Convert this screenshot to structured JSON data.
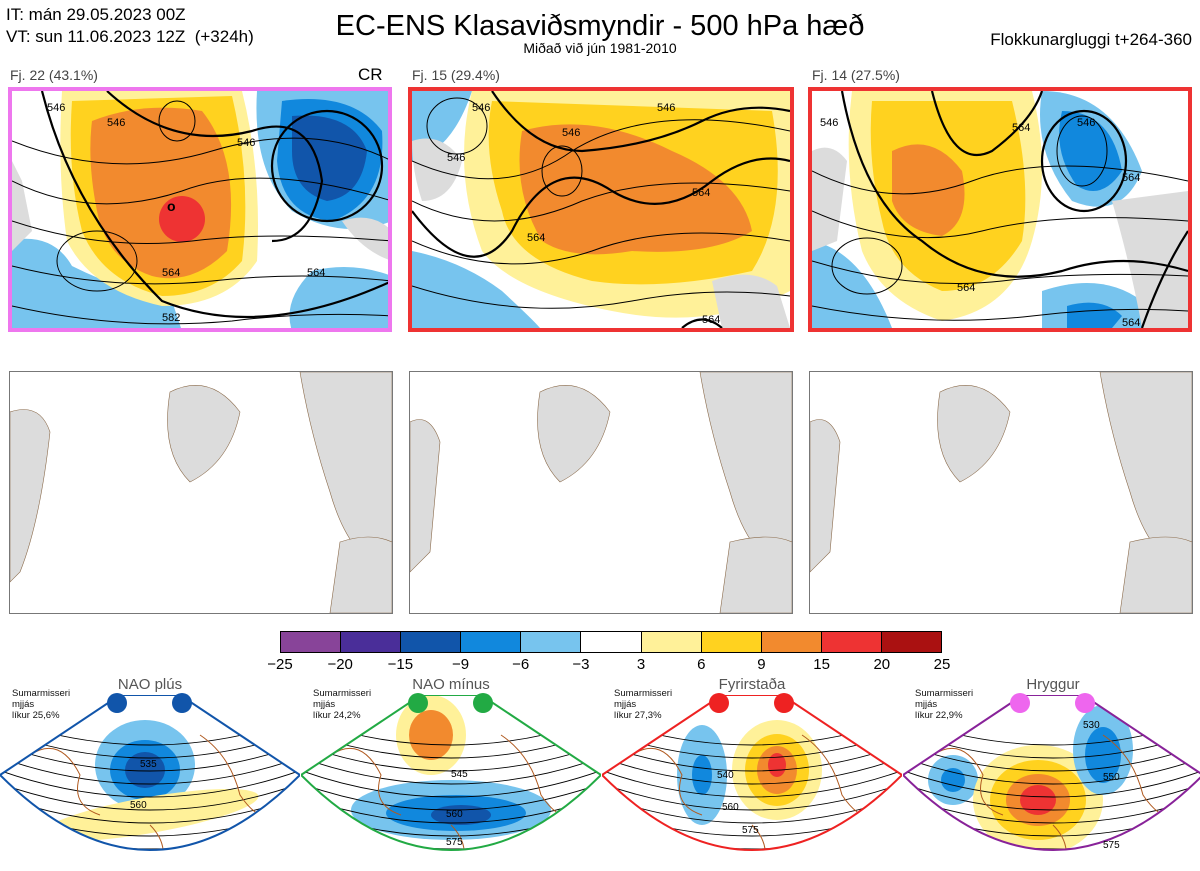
{
  "header": {
    "it_line": "IT: mán 29.05.2023 00Z",
    "vt_line": "VT: sun 11.06.2023 12Z  (+324h)",
    "title": "EC-ENS Klasaviðsmyndir - 500 hPa hæð",
    "subtitle": "Miðað við jún 1981-2010",
    "window_label": "Flokkunargluggi t+264-360"
  },
  "clusters": [
    {
      "label": "Fj. 22 (43.1%)",
      "tag": "CR",
      "border": "#ee77ee",
      "contour_labels": [
        "546",
        "546",
        "564",
        "564",
        "582",
        "546"
      ]
    },
    {
      "label": "Fj. 15 (29.4%)",
      "tag": "",
      "border": "#ee3333",
      "contour_labels": [
        "546",
        "546",
        "546",
        "564",
        "564",
        "564",
        "546"
      ]
    },
    {
      "label": "Fj. 14 (27.5%)",
      "tag": "",
      "border": "#ee3333",
      "contour_labels": [
        "546",
        "546",
        "564",
        "564",
        "564",
        "564"
      ]
    }
  ],
  "colorbar": {
    "ticks": [
      "−25",
      "−20",
      "−15",
      "−9",
      "−6",
      "−3",
      "3",
      "6",
      "9",
      "15",
      "20",
      "25"
    ],
    "colors": [
      "#884499",
      "#4a2e99",
      "#1155aa",
      "#1188dd",
      "#77c4ee",
      "#ffffff",
      "#fff199",
      "#ffd21f",
      "#f28a2e",
      "#ee3333",
      "#aa1111"
    ]
  },
  "regimes": [
    {
      "name": "NAO plús",
      "info": [
        "Sumarmisseri",
        "mjjás",
        "líkur 25,6%"
      ],
      "dot_color": "#1155aa",
      "frame_color": "#1155aa",
      "labels": [
        "535",
        "560"
      ]
    },
    {
      "name": "NAO mínus",
      "info": [
        "Sumarmisseri",
        "mjjás",
        "líkur 24,2%"
      ],
      "dot_color": "#22aa44",
      "frame_color": "#22aa44",
      "labels": [
        "545",
        "560",
        "575"
      ]
    },
    {
      "name": "Fyrirstaða",
      "info": [
        "Sumarmisseri",
        "mjjás",
        "líkur 27,3%"
      ],
      "dot_color": "#ee2222",
      "frame_color": "#ee2222",
      "labels": [
        "540",
        "560",
        "575"
      ]
    },
    {
      "name": "Hryggur",
      "info": [
        "Sumarmisseri",
        "mjjás",
        "líkur 22,9%"
      ],
      "dot_color": "#ee66ee",
      "frame_color": "#882299",
      "labels": [
        "530",
        "550",
        "575"
      ]
    }
  ]
}
